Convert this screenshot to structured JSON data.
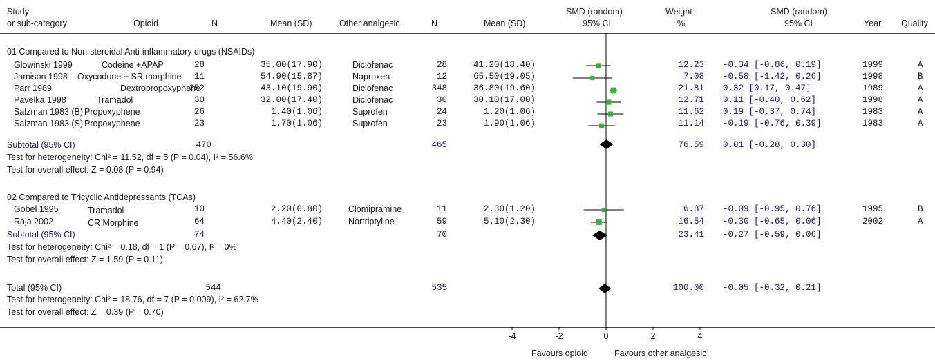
{
  "headers": {
    "study": "Study",
    "subcategory": "or sub-category",
    "opioid": "Opioid",
    "n1": "N",
    "mean1": "Mean (SD)",
    "other": "Other analgesic",
    "n2": "N",
    "mean2": "Mean (SD)",
    "smd1": "SMD (random)",
    "ci1": "95% CI",
    "weight1": "Weight",
    "weight2": "%",
    "smd2": "SMD (random)",
    "ci2": "95% CI",
    "year": "Year",
    "quality": "Quality"
  },
  "groups": [
    {
      "title": "01 Compared to Non-steroidal Anti-inflammatory drugs (NSAIDs)",
      "subtotal_label": "Subtotal (95% CI)",
      "subtotal_n1": "470",
      "subtotal_n2": "465",
      "subtotal_weight": "76.59",
      "subtotal_ci": "0.01 [-0.28, 0.30]",
      "heterogeneity": "Test for heterogeneity: Chi² = 11.52, df = 5 (P = 0.04), I² = 56.6%",
      "overall": "Test for overall effect: Z = 0.08 (P = 0.94)"
    },
    {
      "title": "02 Compared to Tricyclic Antidepressants (TCAs)",
      "subtotal_label": "Subtotal (95% CI)",
      "subtotal_n1": "74",
      "subtotal_n2": "70",
      "subtotal_weight": "23.41",
      "subtotal_ci": "-0.27 [-0.59, 0.06]",
      "heterogeneity": "Test for heterogeneity: Chi² = 0.18, df = 1 (P = 0.67), I² = 0%",
      "overall": "Test for overall effect: Z = 1.59 (P = 0.11)"
    }
  ],
  "studies": [
    {
      "study": "Glowinski 1999",
      "opioid": "Codeine +APAP",
      "n1": "28",
      "mean1": "35.00(17.90)",
      "other": "Diclofenac",
      "n2": "28",
      "mean2": "41.20(18.40)",
      "weight": "12.23",
      "ci": "-0.34 [-0.86, 0.19]",
      "year": "1999",
      "quality": "A"
    },
    {
      "study": "Jamison 1998",
      "opioid": "Oxycodone + SR morphine",
      "n1": "11",
      "mean1": "54.90(15.87)",
      "other": "Naproxen",
      "n2": "12",
      "mean2": "65.50(19.05)",
      "weight": "7.08",
      "ci": "-0.58 [-1.42, 0.26]",
      "year": "1998",
      "quality": "B"
    },
    {
      "study": "Parr 1989",
      "opioid": "Dextropropoxyphene",
      "n1": "352",
      "mean1": "43.10(19.90)",
      "other": "Diclofenac",
      "n2": "348",
      "mean2": "36.80(19.60)",
      "weight": "21.81",
      "ci": "0.32 [0.17, 0.47]",
      "year": "1989",
      "quality": "A"
    },
    {
      "study": "Pavelka 1998",
      "opioid": "Tramadol",
      "n1": "30",
      "mean1": "32.00(17.40)",
      "other": "Diclofenac",
      "n2": "30",
      "mean2": "30.10(17.00)",
      "weight": "12.71",
      "ci": "0.11 [-0.40, 0.62]",
      "year": "1998",
      "quality": "A"
    },
    {
      "study": "Salzman 1983 (B)",
      "opioid": "Propoxyphene",
      "n1": "26",
      "mean1": "1.40(1.06)",
      "other": "Suprofen",
      "n2": "24",
      "mean2": "1.20(1.06)",
      "weight": "11.62",
      "ci": "0.19 [-0.37, 0.74]",
      "year": "1983",
      "quality": "A"
    },
    {
      "study": "Salzman 1983 (S)",
      "opioid": "Propoxyphene",
      "n1": "23",
      "mean1": "1.70(1.06)",
      "other": "Suprofen",
      "n2": "23",
      "mean2": "1.90(1.06)",
      "weight": "11.14",
      "ci": "-0.19 [-0.76, 0.39]",
      "year": "1983",
      "quality": "A"
    },
    {
      "study": "Gobel 1995",
      "opioid": "Tramadol",
      "n1": "10",
      "mean1": "2.20(0.80)",
      "other": "Clomipramine",
      "n2": "11",
      "mean2": "2.30(1.20)",
      "weight": "6.87",
      "ci": "-0.09 [-0.95, 0.76]",
      "year": "1995",
      "quality": "B"
    },
    {
      "study": "Raja 2002",
      "opioid": "CR Morphine",
      "n1": "64",
      "mean1": "4.40(2.40)",
      "other": "Nortriptyline",
      "n2": "59",
      "mean2": "5.10(2.30)",
      "weight": "16.54",
      "ci": "-0.30 [-0.65, 0.06]",
      "year": "2002",
      "quality": "A"
    }
  ],
  "total": {
    "label": "Total (95% CI)",
    "n1": "544",
    "n2": "535",
    "weight": "100.00",
    "ci": "-0.05 [-0.32, 0.21]",
    "heterogeneity": "Test for heterogeneity: Chi² = 18.76, df = 7 (P = 0.009), I² = 62.7%",
    "overall": "Test for overall effect: Z = 0.39 (P = 0.70)"
  },
  "axis": {
    "ticks": [
      "-4",
      "-2",
      "0",
      "2",
      "4"
    ],
    "favours_left": "Favours opioid",
    "favours_right": "Favours other analgesic"
  },
  "colors": {
    "marker": "#2eb82e",
    "diamond": "#000000",
    "values": "#16187a"
  },
  "chart_data": {
    "type": "forest",
    "xlim": [
      -4,
      4
    ],
    "ticks": [
      -4,
      -2,
      0,
      2,
      4
    ],
    "studies": [
      {
        "label": "Glowinski 1999",
        "smd": -0.34,
        "lower": -0.86,
        "upper": 0.19,
        "weight": 12.23
      },
      {
        "label": "Jamison 1998",
        "smd": -0.58,
        "lower": -1.42,
        "upper": 0.26,
        "weight": 7.08
      },
      {
        "label": "Parr 1989",
        "smd": 0.32,
        "lower": 0.17,
        "upper": 0.47,
        "weight": 21.81
      },
      {
        "label": "Pavelka 1998",
        "smd": 0.11,
        "lower": -0.4,
        "upper": 0.62,
        "weight": 12.71
      },
      {
        "label": "Salzman 1983 (B)",
        "smd": 0.19,
        "lower": -0.37,
        "upper": 0.74,
        "weight": 11.62
      },
      {
        "label": "Salzman 1983 (S)",
        "smd": -0.19,
        "lower": -0.76,
        "upper": 0.39,
        "weight": 11.14
      },
      {
        "label": "Gobel 1995",
        "smd": -0.09,
        "lower": -0.95,
        "upper": 0.76,
        "weight": 6.87
      },
      {
        "label": "Raja 2002",
        "smd": -0.3,
        "lower": -0.65,
        "upper": 0.06,
        "weight": 16.54
      }
    ],
    "summaries": [
      {
        "label": "Subtotal (95% CI)",
        "group": 1,
        "smd": 0.01,
        "lower": -0.28,
        "upper": 0.3
      },
      {
        "label": "Subtotal (95% CI)",
        "group": 2,
        "smd": -0.27,
        "lower": -0.59,
        "upper": 0.06
      },
      {
        "label": "Total (95% CI)",
        "smd": -0.05,
        "lower": -0.32,
        "upper": 0.21
      }
    ]
  }
}
